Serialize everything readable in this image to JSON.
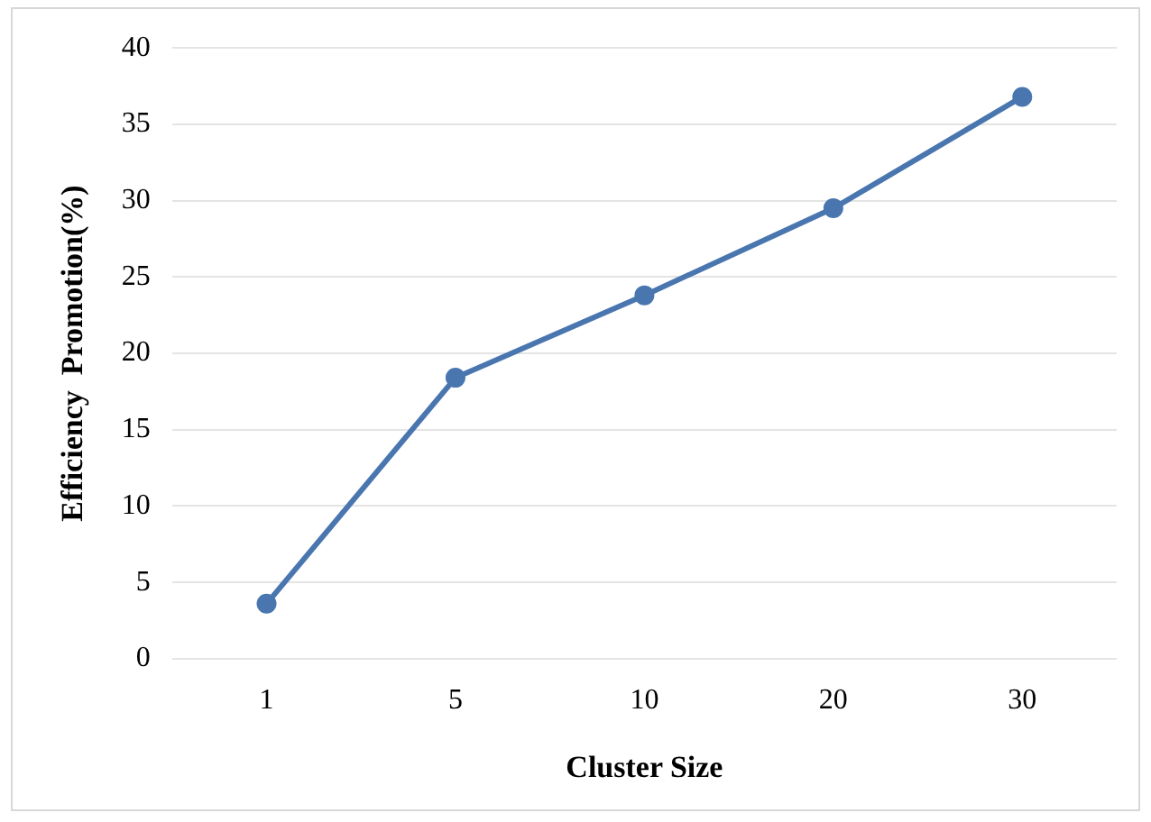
{
  "chart_data": {
    "type": "line",
    "xlabel": "Cluster Size",
    "ylabel": "Efficiency  Promotion(%)",
    "categories": [
      "1",
      "5",
      "10",
      "20",
      "30"
    ],
    "series": [
      {
        "color": "#4a76b0",
        "values": [
          3.6,
          18.4,
          23.8,
          29.5,
          36.8
        ]
      }
    ],
    "ylim": [
      0,
      40
    ],
    "yticks": [
      0,
      5,
      10,
      15,
      20,
      25,
      30,
      35,
      40
    ],
    "grid": "y",
    "legend": false,
    "marker": "circle",
    "line_style": "solid"
  }
}
